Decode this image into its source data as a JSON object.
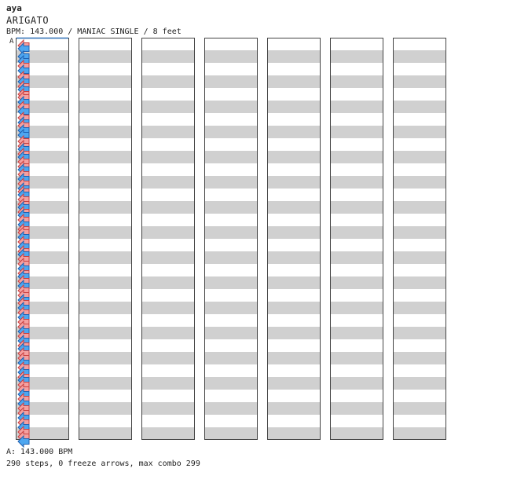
{
  "header": {
    "user": "aya",
    "title": "ARIGATO",
    "info": "BPM: 143.000 / MANIAC SINGLE / 8 feet",
    "section_label": "A"
  },
  "footer": {
    "bpm_line": "A: 143.000 BPM",
    "stats_line": "290 steps, 0 freeze arrows, max combo 299"
  },
  "colors": {
    "red_note": "#f4a0a0",
    "red_note_border": "#c84040",
    "blue_note": "#4da6f0",
    "blue_note_border": "#2060b0",
    "pink_note": "#f4b0f0",
    "pink_note_border": "#b050b0",
    "stripe_grey": "#d0d0d0",
    "stripe_white": "#ffffff",
    "column_border": "#444444",
    "section_marker": "#2e6eb5"
  },
  "chart_data": {
    "type": "step_chart",
    "lanes": [
      "left",
      "down",
      "up",
      "right"
    ],
    "beats_per_row": 8,
    "rows_per_column": 8,
    "total_beats": 448,
    "note_colors": [
      "red",
      "blue",
      "pink"
    ],
    "notes": [
      [
        0,
        0.25,
        "red"
      ],
      [
        0,
        0.75,
        "blue"
      ],
      [
        0,
        2.0,
        "blue"
      ],
      [
        0,
        2.75,
        "blue"
      ],
      [
        0,
        3.5,
        "red"
      ],
      [
        0,
        4.25,
        "blue"
      ],
      [
        0,
        5.25,
        "red"
      ],
      [
        0,
        6.0,
        "blue"
      ],
      [
        0,
        6.75,
        "red"
      ],
      [
        0,
        7.25,
        "blue"
      ],
      [
        0,
        8.0,
        "red"
      ],
      [
        0,
        8.5,
        "red"
      ],
      [
        0,
        9.25,
        "blue"
      ],
      [
        0,
        10.0,
        "red"
      ],
      [
        0,
        10.75,
        "blue"
      ],
      [
        0,
        11.75,
        "red"
      ],
      [
        0,
        12.5,
        "blue"
      ],
      [
        0,
        13.0,
        "red"
      ],
      [
        0,
        13.75,
        "blue"
      ],
      [
        0,
        14.5,
        "blue"
      ],
      [
        0,
        15.5,
        "red"
      ],
      [
        0,
        16.25,
        "red"
      ],
      [
        0,
        16.75,
        "blue"
      ],
      [
        0,
        17.5,
        "red"
      ],
      [
        0,
        18.0,
        "blue"
      ],
      [
        0,
        18.75,
        "red"
      ],
      [
        0,
        19.5,
        "red"
      ],
      [
        0,
        20.0,
        "blue"
      ],
      [
        0,
        20.75,
        "red"
      ],
      [
        0,
        21.5,
        "blue"
      ],
      [
        0,
        22.25,
        "red"
      ],
      [
        0,
        23.0,
        "blue"
      ],
      [
        0,
        23.5,
        "red"
      ],
      [
        0,
        24.0,
        "blue"
      ],
      [
        0,
        24.75,
        "red"
      ],
      [
        0,
        25.5,
        "red"
      ],
      [
        0,
        26.0,
        "blue"
      ],
      [
        0,
        26.75,
        "red"
      ],
      [
        0,
        27.25,
        "blue"
      ],
      [
        0,
        28.0,
        "red"
      ],
      [
        0,
        28.75,
        "blue"
      ],
      [
        0,
        29.5,
        "red"
      ],
      [
        0,
        30.0,
        "red"
      ],
      [
        0,
        30.75,
        "blue"
      ],
      [
        0,
        31.5,
        "red"
      ],
      [
        0,
        32.25,
        "blue"
      ],
      [
        0,
        33.0,
        "red"
      ],
      [
        0,
        33.5,
        "blue"
      ],
      [
        0,
        34.25,
        "red"
      ],
      [
        0,
        35.0,
        "red"
      ],
      [
        0,
        35.75,
        "blue"
      ],
      [
        0,
        36.5,
        "red"
      ],
      [
        0,
        37.0,
        "blue"
      ],
      [
        0,
        37.75,
        "red"
      ],
      [
        0,
        38.5,
        "blue"
      ],
      [
        0,
        39.25,
        "red"
      ],
      [
        0,
        40.0,
        "red"
      ],
      [
        0,
        40.75,
        "blue"
      ],
      [
        0,
        41.25,
        "red"
      ],
      [
        0,
        42.0,
        "blue"
      ],
      [
        0,
        42.75,
        "red"
      ],
      [
        0,
        43.5,
        "blue"
      ],
      [
        0,
        44.25,
        "red"
      ],
      [
        0,
        45.0,
        "red"
      ],
      [
        0,
        45.75,
        "blue"
      ],
      [
        0,
        46.5,
        "red"
      ],
      [
        0,
        47.25,
        "blue"
      ],
      [
        0,
        48.0,
        "red"
      ],
      [
        0,
        48.5,
        "blue"
      ],
      [
        0,
        49.25,
        "red"
      ],
      [
        0,
        50.0,
        "red"
      ],
      [
        0,
        50.75,
        "blue"
      ],
      [
        0,
        51.5,
        "red"
      ],
      [
        0,
        52.25,
        "blue"
      ],
      [
        0,
        53.0,
        "red"
      ],
      [
        0,
        53.5,
        "blue"
      ],
      [
        0,
        54.25,
        "red"
      ],
      [
        0,
        55.0,
        "red"
      ],
      [
        0,
        55.75,
        "blue"
      ],
      [
        0,
        56.5,
        "red"
      ],
      [
        0,
        57.25,
        "blue"
      ],
      [
        0,
        58.0,
        "red"
      ],
      [
        0,
        58.75,
        "red"
      ],
      [
        0,
        59.5,
        "blue"
      ],
      [
        0,
        60.25,
        "red"
      ],
      [
        0,
        61.0,
        "blue"
      ],
      [
        0,
        61.75,
        "red"
      ],
      [
        0,
        62.5,
        "red"
      ],
      [
        0,
        63.25,
        "blue"
      ]
    ]
  }
}
